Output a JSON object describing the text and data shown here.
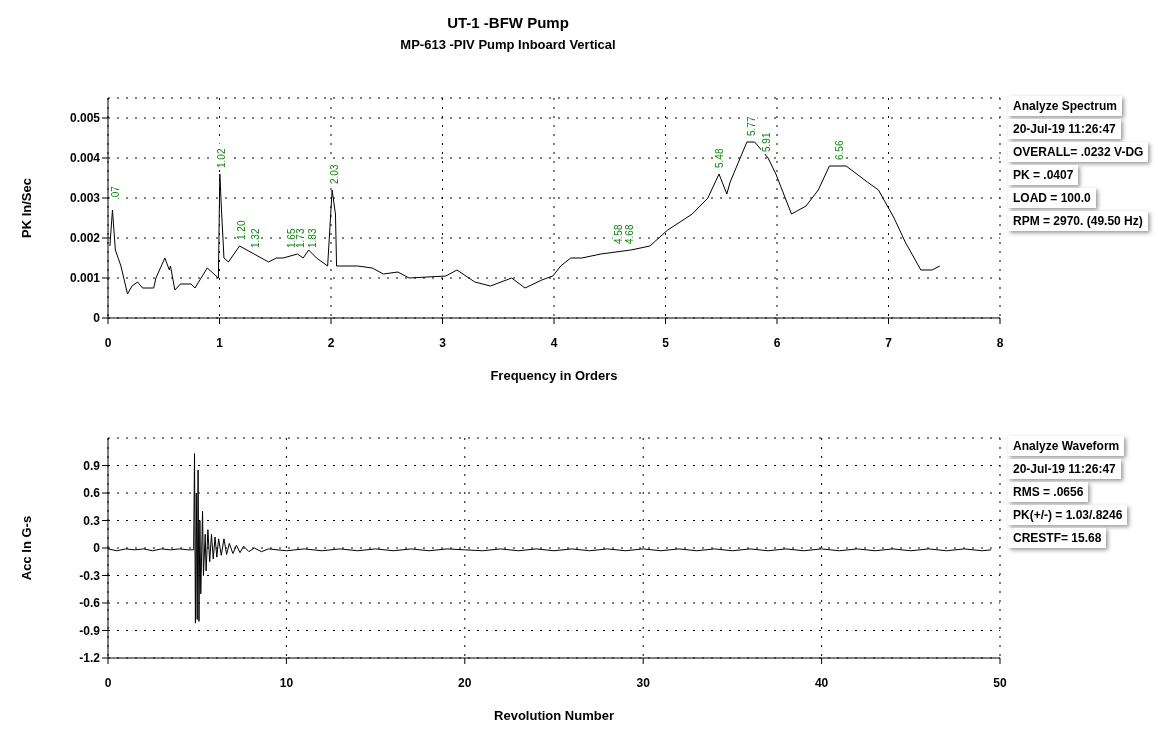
{
  "chart_data": [
    {
      "type": "line",
      "title": "UT-1 -BFW Pump",
      "subtitle": "MP-613 -PIV Pump Inboard Vertical",
      "xlabel": "Frequency in Orders",
      "ylabel": "PK In/Sec",
      "xlim": [
        0,
        8
      ],
      "xticks": [
        0,
        1,
        2,
        3,
        4,
        5,
        6,
        7,
        8
      ],
      "ylim": [
        0,
        0.0055
      ],
      "yticks": [
        0,
        0.001,
        0.002,
        0.003,
        0.004,
        0.005
      ],
      "grid": true,
      "marker": "none",
      "line_style": "solid",
      "series": [
        {
          "color": "#000000",
          "x": [
            0.017,
            0.04,
            0.066,
            0.116,
            0.175,
            0.215,
            0.265,
            0.31,
            0.41,
            0.43,
            0.51,
            0.55,
            0.56,
            0.6,
            0.65,
            0.745,
            0.78,
            0.89,
            0.99,
            1.003,
            1.016,
            1.04,
            1.08,
            1.18,
            1.31,
            1.44,
            1.51,
            1.57,
            1.7,
            1.75,
            1.8,
            1.87,
            1.97,
            2.01,
            2.04,
            2.05,
            2.24,
            2.37,
            2.47,
            2.6,
            2.7,
            3.03,
            3.13,
            3.29,
            3.43,
            3.62,
            3.74,
            3.89,
            3.99,
            4.06,
            4.15,
            4.25,
            4.42,
            4.69,
            4.86,
            5.02,
            5.24,
            5.38,
            5.48,
            5.55,
            5.58,
            5.73,
            5.8,
            5.92,
            5.99,
            6.13,
            6.26,
            6.37,
            6.47,
            6.54,
            6.62,
            6.81,
            6.91,
            7.05,
            7.15,
            7.29,
            7.39,
            7.46
          ],
          "values": [
            0.0018,
            0.0027,
            0.0017,
            0.0013,
            0.0006,
            0.0008,
            0.0009,
            0.00075,
            0.00075,
            0.001,
            0.0015,
            0.0012,
            0.0013,
            0.0007,
            0.00085,
            0.00085,
            0.00075,
            0.00125,
            0.001,
            0.0036,
            0.0028,
            0.0015,
            0.0014,
            0.0018,
            0.0016,
            0.0014,
            0.0015,
            0.0015,
            0.0016,
            0.0015,
            0.0017,
            0.0015,
            0.0013,
            0.0032,
            0.0026,
            0.0013,
            0.0013,
            0.00125,
            0.0011,
            0.00115,
            0.001,
            0.00105,
            0.0012,
            0.0009,
            0.0008,
            0.001,
            0.00075,
            0.00095,
            0.00105,
            0.0013,
            0.0015,
            0.0015,
            0.0016,
            0.0017,
            0.0018,
            0.0022,
            0.0026,
            0.003,
            0.0036,
            0.0031,
            0.0034,
            0.0044,
            0.0044,
            0.004,
            0.0036,
            0.0026,
            0.0028,
            0.0032,
            0.0038,
            0.0038,
            0.0038,
            0.0034,
            0.0032,
            0.0025,
            0.0019,
            0.0012,
            0.0012,
            0.0013
          ]
        }
      ],
      "annotations": [
        {
          "text": ".07",
          "x": 0.07,
          "y": 0.0028
        },
        {
          "text": "1.02",
          "x": 1.02,
          "y": 0.0036
        },
        {
          "text": "1.20",
          "x": 1.2,
          "y": 0.0018
        },
        {
          "text": "1.32",
          "x": 1.32,
          "y": 0.0016
        },
        {
          "text": "1.65",
          "x": 1.65,
          "y": 0.0016
        },
        {
          "text": "1.73",
          "x": 1.73,
          "y": 0.0016
        },
        {
          "text": "1.83",
          "x": 1.83,
          "y": 0.0016
        },
        {
          "text": "2.03",
          "x": 2.03,
          "y": 0.0032
        },
        {
          "text": "4.58",
          "x": 4.58,
          "y": 0.0017
        },
        {
          "text": "4.68",
          "x": 4.68,
          "y": 0.0017
        },
        {
          "text": "5.48",
          "x": 5.48,
          "y": 0.0036
        },
        {
          "text": "5.77",
          "x": 5.77,
          "y": 0.0044
        },
        {
          "text": "5.91",
          "x": 5.91,
          "y": 0.004
        },
        {
          "text": "6.56",
          "x": 6.56,
          "y": 0.0038
        },
        "Analyze Spectrum",
        "20-Jul-19 11:26:47",
        "OVERALL= .0232 V-DG",
        "PK = .0407",
        "LOAD = 100.0",
        "RPM = 2970. (49.50 Hz)"
      ]
    },
    {
      "type": "line",
      "xlabel": "Revolution Number",
      "ylabel": "Acc In G-s",
      "xlim": [
        0,
        50
      ],
      "xticks": [
        0,
        10,
        20,
        30,
        40,
        50
      ],
      "ylim": [
        -1.2,
        1.2
      ],
      "yticks": [
        -1.2,
        -0.9,
        -0.6,
        -0.3,
        0,
        0.3,
        0.6,
        0.9
      ],
      "grid": true,
      "marker": "none",
      "line_style": "solid",
      "series": [
        {
          "color": "#000000",
          "x": [
            0,
            0.5,
            1,
            1.5,
            2,
            2.5,
            3,
            3.5,
            4,
            4.5,
            4.8,
            4.85,
            4.9,
            4.95,
            5,
            5.05,
            5.1,
            5.15,
            5.2,
            5.3,
            5.35,
            5.45,
            5.5,
            5.6,
            5.7,
            5.8,
            5.9,
            6,
            6.1,
            6.2,
            6.35,
            6.5,
            6.65,
            6.8,
            7,
            7.2,
            7.4,
            7.6,
            7.9,
            8.2,
            8.6,
            9,
            10,
            11,
            12,
            13,
            14,
            15,
            16,
            17,
            18,
            19,
            20,
            21,
            22,
            23,
            24,
            25,
            26,
            27,
            28,
            29,
            30,
            31,
            32,
            33,
            34,
            35,
            36,
            37,
            38,
            39,
            40,
            41,
            42,
            43,
            44,
            45,
            46,
            47,
            48,
            49,
            49.5
          ],
          "values": [
            -0.01,
            -0.03,
            -0.01,
            -0.02,
            -0.01,
            -0.03,
            -0.01,
            -0.02,
            -0.01,
            -0.02,
            -0.02,
            1.03,
            -0.82,
            0.6,
            -0.78,
            0.85,
            -0.8,
            0.3,
            -0.5,
            0.4,
            -0.3,
            0.15,
            -0.25,
            0.2,
            -0.15,
            0.15,
            -0.12,
            0.12,
            -0.1,
            0.1,
            -0.08,
            0.1,
            -0.07,
            0.05,
            -0.06,
            0.03,
            -0.05,
            0.02,
            -0.04,
            0,
            -0.04,
            -0.01,
            -0.03,
            -0.01,
            -0.03,
            -0.01,
            -0.03,
            -0.01,
            -0.03,
            -0.01,
            -0.03,
            -0.01,
            -0.02,
            -0.03,
            -0.01,
            -0.03,
            -0.01,
            -0.03,
            -0.01,
            -0.03,
            -0.01,
            -0.03,
            -0.01,
            -0.03,
            -0.01,
            -0.03,
            -0.01,
            -0.03,
            -0.01,
            -0.03,
            -0.01,
            -0.03,
            -0.01,
            -0.03,
            -0.01,
            -0.03,
            -0.01,
            -0.03,
            -0.01,
            -0.03,
            -0.01,
            -0.03,
            -0.02
          ]
        }
      ],
      "annotations": [
        "Analyze Waveform",
        "20-Jul-19 11:26:47",
        "RMS = .0656",
        "PK(+/-) = 1.03/.8246",
        "CRESTF= 15.68"
      ]
    }
  ]
}
